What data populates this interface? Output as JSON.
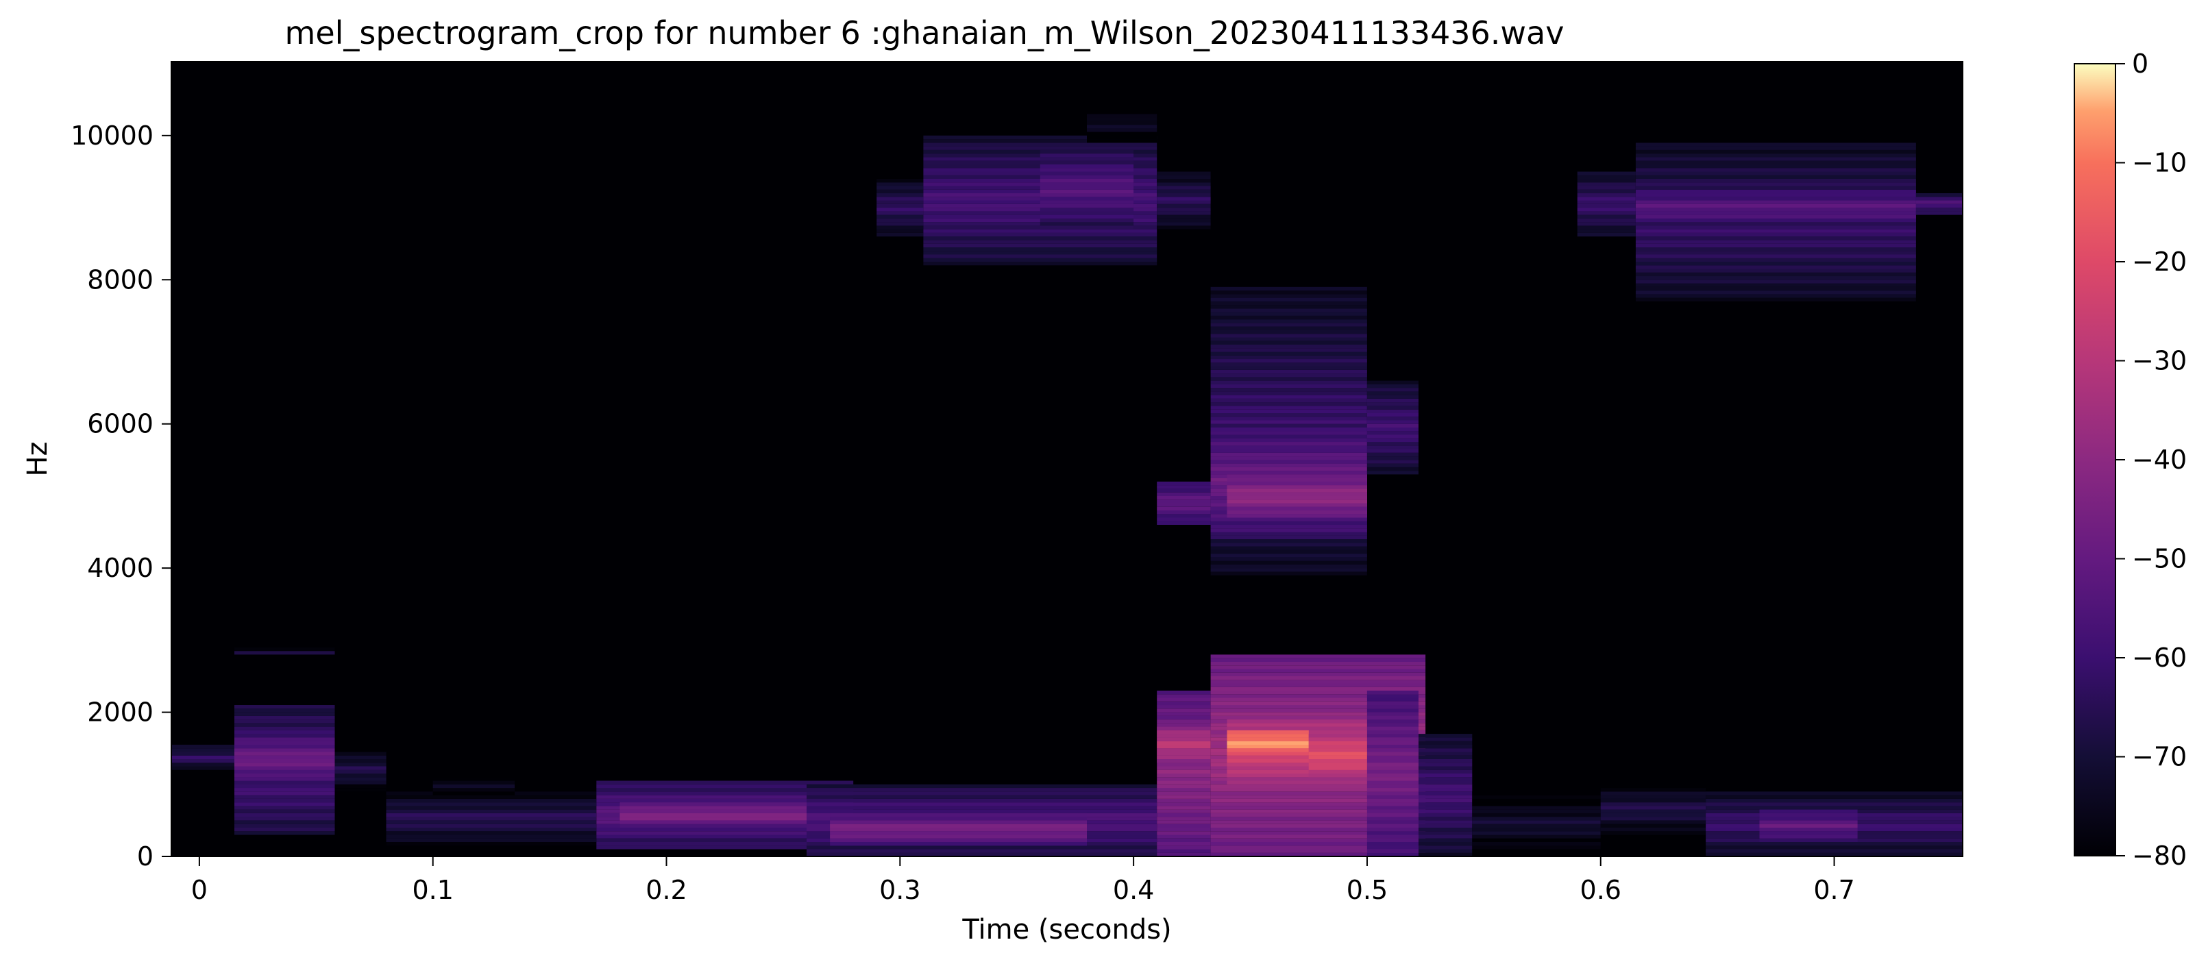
{
  "chart_data": {
    "type": "heatmap",
    "title": "mel_spectrogram_crop for number 6 :ghanaian_m_Wilson_20230411133436.wav",
    "xlabel": "Time (seconds)",
    "ylabel": "Hz",
    "xlim": [
      -0.012,
      0.755
    ],
    "ylim": [
      0,
      11025
    ],
    "x_ticks": [
      0,
      0.1,
      0.2,
      0.3,
      0.4,
      0.5,
      0.6,
      0.7
    ],
    "x_tick_labels": [
      "0",
      "0.1",
      "0.2",
      "0.3",
      "0.4",
      "0.5",
      "0.6",
      "0.7"
    ],
    "y_ticks": [
      0,
      2000,
      4000,
      6000,
      8000,
      10000
    ],
    "y_tick_labels": [
      "0",
      "2000",
      "4000",
      "6000",
      "8000",
      "10000"
    ],
    "colorbar": {
      "label": "",
      "range": [
        -80,
        0
      ],
      "ticks": [
        0,
        -10,
        -20,
        -30,
        -40,
        -50,
        -60,
        -70,
        -80
      ],
      "tick_labels": [
        "0",
        "−10",
        "−20",
        "−30",
        "−40",
        "−50",
        "−60",
        "−70",
        "−80"
      ],
      "colormap": "magma"
    },
    "floor_db": -80,
    "regions": [
      {
        "t": [
          0.015,
          0.058
        ],
        "f": [
          300,
          2100
        ],
        "db": -55
      },
      {
        "t": [
          0.015,
          0.058
        ],
        "f": [
          1000,
          1700
        ],
        "db": -47
      },
      {
        "t": [
          0.015,
          0.058
        ],
        "f": [
          2750,
          2900
        ],
        "db": -70
      },
      {
        "t": [
          -0.012,
          0.015
        ],
        "f": [
          1200,
          1550
        ],
        "db": -62
      },
      {
        "t": [
          0.058,
          0.08
        ],
        "f": [
          900,
          1500
        ],
        "db": -66
      },
      {
        "t": [
          0.08,
          0.17
        ],
        "f": [
          150,
          900
        ],
        "db": -64
      },
      {
        "t": [
          0.1,
          0.135
        ],
        "f": [
          850,
          1150
        ],
        "db": -72
      },
      {
        "t": [
          0.17,
          0.28
        ],
        "f": [
          100,
          1050
        ],
        "db": -52
      },
      {
        "t": [
          0.18,
          0.26
        ],
        "f": [
          400,
          750
        ],
        "db": -42
      },
      {
        "t": [
          0.26,
          0.41
        ],
        "f": [
          0,
          1000
        ],
        "db": -55
      },
      {
        "t": [
          0.27,
          0.38
        ],
        "f": [
          150,
          600
        ],
        "db": -44
      },
      {
        "t": [
          0.29,
          0.31
        ],
        "f": [
          8600,
          9400
        ],
        "db": -62
      },
      {
        "t": [
          0.31,
          0.41
        ],
        "f": [
          8200,
          10000
        ],
        "db": -57
      },
      {
        "t": [
          0.36,
          0.4
        ],
        "f": [
          8700,
          9800
        ],
        "db": -53
      },
      {
        "t": [
          0.38,
          0.41
        ],
        "f": [
          9900,
          10400
        ],
        "db": -72
      },
      {
        "t": [
          0.41,
          0.433
        ],
        "f": [
          8700,
          9500
        ],
        "db": -63
      },
      {
        "t": [
          0.41,
          0.433
        ],
        "f": [
          0,
          2300
        ],
        "db": -40
      },
      {
        "t": [
          0.41,
          0.433
        ],
        "f": [
          1300,
          1800
        ],
        "db": -28
      },
      {
        "t": [
          0.41,
          0.433
        ],
        "f": [
          4600,
          5200
        ],
        "db": -50
      },
      {
        "t": [
          0.433,
          0.525
        ],
        "f": [
          0,
          2800
        ],
        "db": -35
      },
      {
        "t": [
          0.44,
          0.5
        ],
        "f": [
          1000,
          1900
        ],
        "db": -22
      },
      {
        "t": [
          0.44,
          0.475
        ],
        "f": [
          1400,
          1750
        ],
        "db": -5
      },
      {
        "t": [
          0.475,
          0.5
        ],
        "f": [
          1100,
          1700
        ],
        "db": -18
      },
      {
        "t": [
          0.433,
          0.5
        ],
        "f": [
          3900,
          7900
        ],
        "db": -60
      },
      {
        "t": [
          0.433,
          0.5
        ],
        "f": [
          4400,
          6000
        ],
        "db": -48
      },
      {
        "t": [
          0.44,
          0.5
        ],
        "f": [
          4700,
          5300
        ],
        "db": -38
      },
      {
        "t": [
          0.5,
          0.522
        ],
        "f": [
          5300,
          6600
        ],
        "db": -58
      },
      {
        "t": [
          0.5,
          0.522
        ],
        "f": [
          0,
          2300
        ],
        "db": -45
      },
      {
        "t": [
          0.522,
          0.545
        ],
        "f": [
          0,
          1700
        ],
        "db": -58
      },
      {
        "t": [
          0.545,
          0.6
        ],
        "f": [
          0,
          900
        ],
        "db": -70
      },
      {
        "t": [
          0.6,
          0.645
        ],
        "f": [
          300,
          1000
        ],
        "db": -66
      },
      {
        "t": [
          0.645,
          0.755
        ],
        "f": [
          0,
          900
        ],
        "db": -60
      },
      {
        "t": [
          0.668,
          0.71
        ],
        "f": [
          200,
          650
        ],
        "db": -50
      },
      {
        "t": [
          0.59,
          0.615
        ],
        "f": [
          8600,
          9500
        ],
        "db": -60
      },
      {
        "t": [
          0.615,
          0.735
        ],
        "f": [
          7700,
          9900
        ],
        "db": -60
      },
      {
        "t": [
          0.615,
          0.735
        ],
        "f": [
          8700,
          9300
        ],
        "db": -52
      },
      {
        "t": [
          0.735,
          0.755
        ],
        "f": [
          8900,
          9200
        ],
        "db": -55
      }
    ]
  }
}
